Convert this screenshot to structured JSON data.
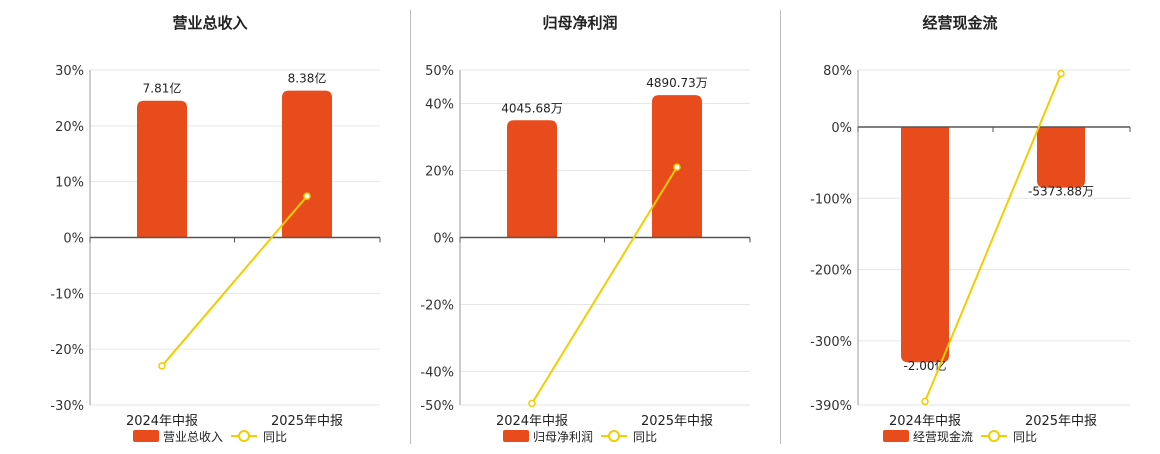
{
  "colors": {
    "bar": "#e84b1c",
    "line": "#f2cd00",
    "grid": "#e6e6e6",
    "axis": "#555555",
    "text": "#333333"
  },
  "chart_data": [
    {
      "type": "bar",
      "title": "营业总收入",
      "categories": [
        "2024年中报",
        "2025年中报"
      ],
      "ylim": [
        -30,
        30
      ],
      "ticks": [
        30,
        20,
        10,
        0,
        -10,
        -20,
        -30
      ],
      "tick_labels": [
        "30%",
        "20%",
        "10%",
        "0%",
        "-10%",
        "-20%",
        "-30%"
      ],
      "series": [
        {
          "name": "营业总收入",
          "kind": "bar",
          "axis_pct": [
            24.5,
            26.3
          ],
          "labels": [
            "7.81亿",
            "8.38亿"
          ]
        },
        {
          "name": "同比",
          "kind": "line",
          "values": [
            -23.0,
            7.4
          ]
        }
      ],
      "grid": true,
      "legend_position": "bottom"
    },
    {
      "type": "bar",
      "title": "归母净利润",
      "categories": [
        "2024年中报",
        "2025年中报"
      ],
      "ylim": [
        -50,
        50
      ],
      "ticks": [
        50,
        40,
        20,
        0,
        -20,
        -40,
        -50
      ],
      "tick_labels": [
        "50%",
        "40%",
        "20%",
        "0%",
        "-20%",
        "-40%",
        "-50%"
      ],
      "series": [
        {
          "name": "归母净利润",
          "kind": "bar",
          "axis_pct": [
            35.0,
            42.5
          ],
          "labels": [
            "4045.68万",
            "4890.73万"
          ]
        },
        {
          "name": "同比",
          "kind": "line",
          "values": [
            -49.5,
            21.0
          ]
        }
      ],
      "grid": true,
      "legend_position": "bottom"
    },
    {
      "type": "bar",
      "title": "经营现金流",
      "categories": [
        "2024年中报",
        "2025年中报"
      ],
      "ylim": [
        -390,
        80
      ],
      "ticks": [
        80,
        0,
        -100,
        -200,
        -300,
        -390
      ],
      "tick_labels": [
        "80%",
        "0%",
        "-100%",
        "-200%",
        "-300%",
        "-390%"
      ],
      "series": [
        {
          "name": "经营现金流",
          "kind": "bar",
          "axis_pct": [
            -330,
            -85
          ],
          "labels": [
            "-2.00亿",
            "-5373.88万"
          ]
        },
        {
          "name": "同比",
          "kind": "line",
          "values": [
            -385,
            75
          ]
        }
      ],
      "grid": true,
      "legend_position": "bottom"
    }
  ]
}
